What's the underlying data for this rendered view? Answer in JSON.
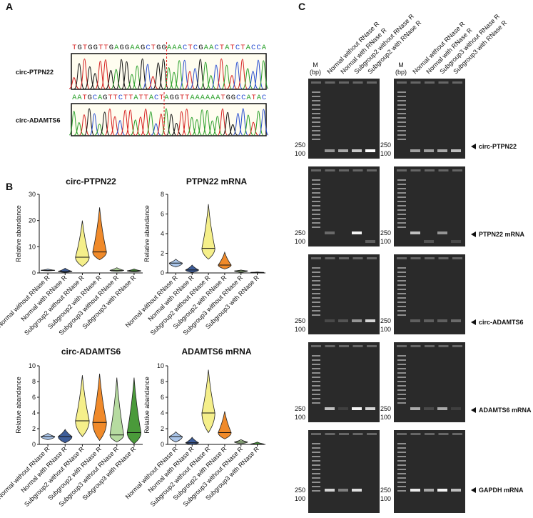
{
  "panel_labels": [
    "A",
    "B",
    "C"
  ],
  "sequencing": {
    "traces": [
      {
        "label": "circ-PTPN22",
        "sequence": "TGTGGTTGAGGAAGCTGGAAACTCGAACTATCTACCA"
      },
      {
        "label": "circ-ADAMTS6",
        "sequence": "AATGCAGTTCTTATTACTAGGTTAAAAAATGGCCATAC"
      }
    ],
    "base_colors": {
      "A": "#2aa02a",
      "C": "#2a4fd0",
      "G": "#111111",
      "T": "#d62020"
    }
  },
  "chart_data": [
    {
      "type": "violin",
      "title": "circ-PTPN22",
      "y_label": "Relative abandance",
      "categories": [
        "Normal without RNase R",
        "Normal with RNase R",
        "Subgroup2 without RNase R",
        "Subgroup2 with RNase R",
        "Subgroup3 without RNase R",
        "Subgroup3 with RNase R"
      ],
      "colors": [
        "#a9c4e8",
        "#3d5d9a",
        "#f5ef8a",
        "#f08a2a",
        "#b6dba0",
        "#4a9a3a"
      ],
      "stats": {
        "min": [
          0.8,
          0.2,
          2.5,
          5,
          0.5,
          0.4
        ],
        "median": [
          1,
          0.6,
          6,
          8,
          1,
          0.8
        ],
        "max": [
          1.5,
          1.8,
          20,
          25,
          2,
          1.5
        ]
      },
      "ylim": [
        0,
        30
      ],
      "yticks": [
        0,
        10,
        20,
        30
      ]
    },
    {
      "type": "violin",
      "title": "PTPN22 mRNA",
      "y_label": "Relative abandance",
      "categories": [
        "Normal without RNase R",
        "Normal with RNase R",
        "Subgroup2 without RNase R",
        "Subgroup2 with RNase R",
        "Subgroup3 without RNase R",
        "Subgroup3 with RNase R"
      ],
      "colors": [
        "#a9c4e8",
        "#3d5d9a",
        "#f5ef8a",
        "#f08a2a",
        "#b6dba0",
        "#4a9a3a"
      ],
      "stats": {
        "min": [
          0.6,
          0.05,
          1.4,
          0.4,
          0.05,
          0
        ],
        "median": [
          1,
          0.3,
          2.5,
          0.8,
          0.2,
          0.05
        ],
        "max": [
          1.4,
          0.8,
          7,
          2.1,
          0.3,
          0.1
        ]
      },
      "ylim": [
        0,
        8
      ],
      "yticks": [
        0,
        2,
        4,
        6,
        8
      ]
    },
    {
      "type": "violin",
      "title": "circ-ADAMTS6",
      "y_label": "Relative abandance",
      "categories": [
        "Normal without RNase R",
        "Normal with RNase R",
        "Subgroup2 without RNase R",
        "Subgroup2 with RNase R",
        "Subgroup3 without RNase R",
        "Subgroup3 with RNase R"
      ],
      "colors": [
        "#a9c4e8",
        "#3d5d9a",
        "#f5ef8a",
        "#f08a2a",
        "#b6dba0",
        "#4a9a3a"
      ],
      "stats": {
        "min": [
          0.6,
          0.2,
          1,
          0.5,
          0.3,
          0.1
        ],
        "median": [
          1,
          1,
          3,
          2.8,
          1.2,
          1.5
        ],
        "max": [
          1.4,
          1.9,
          8.8,
          9,
          8.5,
          8.5
        ]
      },
      "ylim": [
        0,
        10
      ],
      "yticks": [
        0,
        2,
        4,
        6,
        8,
        10
      ]
    },
    {
      "type": "violin",
      "title": "ADAMTS6 mRNA",
      "y_label": "Relative abandance",
      "categories": [
        "Normal without RNase R",
        "Normal with RNase R",
        "Subgroup2 without RNase R",
        "Subgroup2 with RNase R",
        "Subgroup3 without RNase R",
        "Subgroup3 with RNase R"
      ],
      "colors": [
        "#a9c4e8",
        "#3d5d9a",
        "#f5ef8a",
        "#f08a2a",
        "#b6dba0",
        "#4a9a3a"
      ],
      "stats": {
        "min": [
          0.3,
          0,
          1.5,
          0.7,
          0.1,
          0
        ],
        "median": [
          1,
          0.2,
          4,
          1.5,
          0.3,
          0.05
        ],
        "max": [
          1.6,
          0.9,
          9.5,
          4.2,
          0.6,
          0.3
        ]
      },
      "ylim": [
        0,
        10
      ],
      "yticks": [
        0,
        2,
        4,
        6,
        8,
        10
      ]
    }
  ],
  "gel": {
    "marker_header": [
      "M",
      "(bp)"
    ],
    "left_lanes": [
      "Normal without RNase R",
      "Normal with RNase R",
      "Subgroup2 without RNase R",
      "Subgroup2 with RNase R"
    ],
    "right_lanes": [
      "Normal without RNase R",
      "Normal with RNase R",
      "Subgroup3 without RNase R",
      "Subgroup3 with RNase R"
    ],
    "marker_labels": [
      "250",
      "100"
    ],
    "targets": [
      "circ-PTPN22",
      "PTPN22 mRNA",
      "circ-ADAMTS6",
      "ADAMTS6 mRNA",
      "GAPDH mRNA"
    ]
  }
}
